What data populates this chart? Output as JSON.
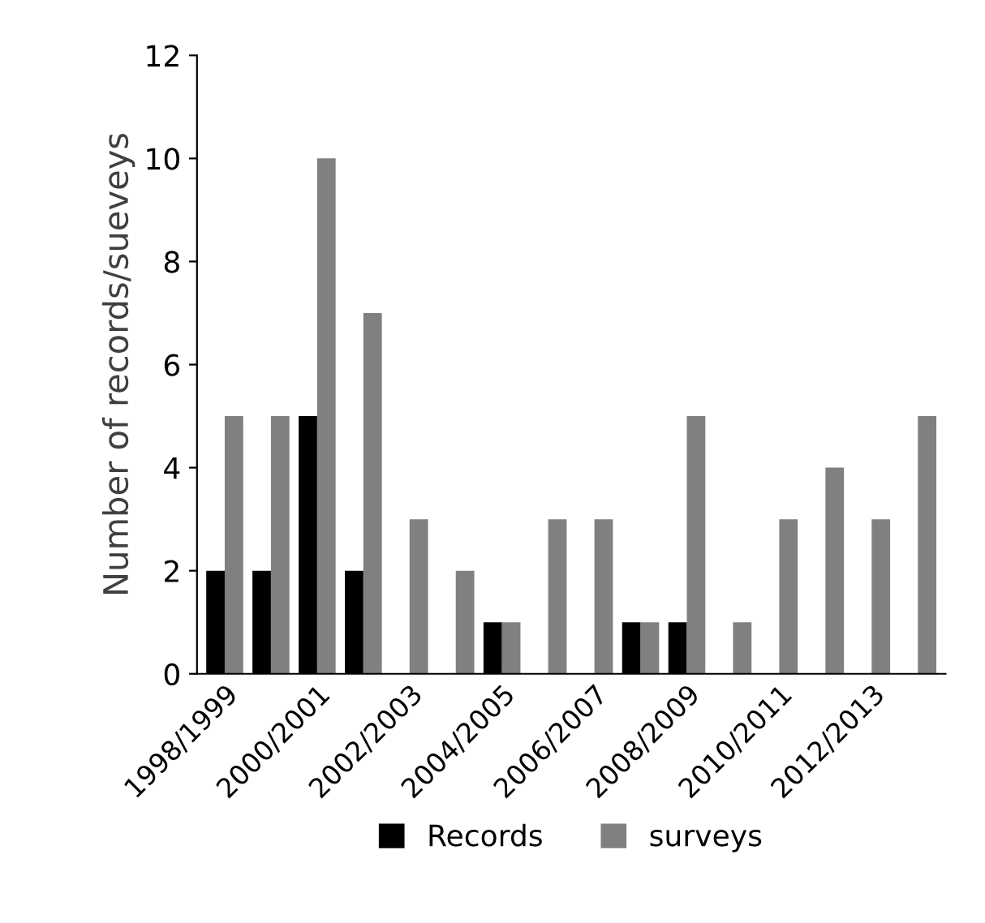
{
  "chart_data": {
    "type": "bar",
    "ylabel": "Number of records/sueveys",
    "categories": [
      "1998/1999",
      null,
      "2000/2001",
      null,
      "2002/2003",
      null,
      "2004/2005",
      null,
      "2006/2007",
      null,
      "2008/2009",
      null,
      "2010/2011",
      null,
      "2012/2013",
      null
    ],
    "series": [
      {
        "name": "Records",
        "color": "#000000",
        "values": [
          2,
          2,
          5,
          2,
          0,
          0,
          1,
          0,
          0,
          1,
          1,
          0,
          0,
          0,
          0,
          0
        ]
      },
      {
        "name": "surveys",
        "color": "#808080",
        "values": [
          5,
          5,
          10,
          7,
          3,
          2,
          1,
          3,
          3,
          1,
          5,
          1,
          3,
          4,
          3,
          5
        ]
      }
    ],
    "ylim": [
      0,
      12
    ],
    "yticks": [
      0,
      2,
      4,
      6,
      8,
      10,
      12
    ],
    "grid": false,
    "legend": "bottom"
  }
}
